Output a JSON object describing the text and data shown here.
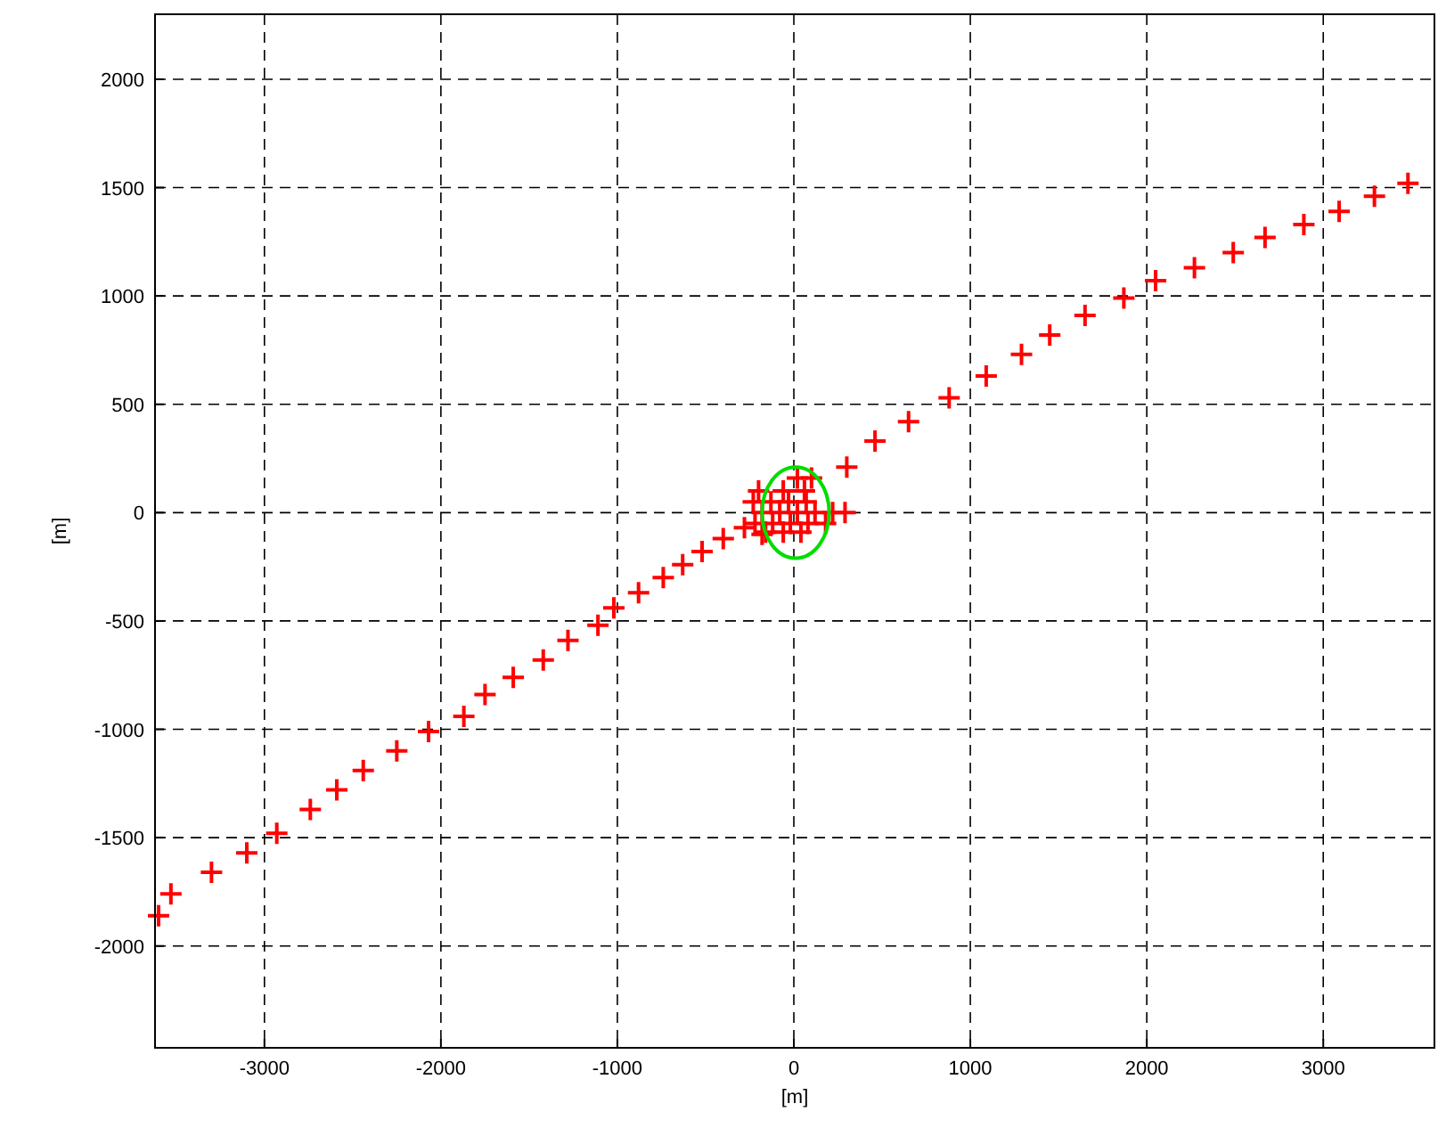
{
  "chart_data": {
    "type": "scatter",
    "xlabel": "[m]",
    "ylabel": "[m]",
    "xlim": [
      -3620,
      3630
    ],
    "ylim": [
      -2470,
      2300
    ],
    "xticks": [
      -3000,
      -2000,
      -1000,
      0,
      1000,
      2000,
      3000
    ],
    "yticks": [
      -2000,
      -1500,
      -1000,
      -500,
      0,
      500,
      1000,
      1500,
      2000
    ],
    "grid": true,
    "series": [
      {
        "color": "#ff0000",
        "marker": "cross",
        "x": [
          -3600,
          -3530,
          -3300,
          -3100,
          -2930,
          -2740,
          -2590,
          -2440,
          -2250,
          -2070,
          -1870,
          -1750,
          -1590,
          -1420,
          -1280,
          -1110,
          -1020,
          -880,
          -740,
          -630,
          -520,
          -400,
          -280,
          -180,
          300,
          460,
          650,
          880,
          1090,
          1290,
          1450,
          1650,
          1870,
          2050,
          2270,
          2490,
          2670,
          2890,
          3090,
          3290,
          3480,
          -200,
          -60,
          60,
          20,
          100,
          -230,
          -130,
          -30,
          70,
          -180,
          -80,
          20,
          120,
          220,
          290,
          -220,
          -120,
          -20,
          80,
          180,
          -160,
          -60,
          40
        ],
        "values": [
          -1860,
          -1760,
          -1660,
          -1570,
          -1480,
          -1370,
          -1280,
          -1190,
          -1100,
          -1010,
          -940,
          -840,
          -760,
          -680,
          -590,
          -520,
          -440,
          -370,
          -300,
          -240,
          -180,
          -120,
          -70,
          -100,
          210,
          330,
          420,
          530,
          630,
          730,
          820,
          910,
          990,
          1070,
          1130,
          1200,
          1270,
          1330,
          1390,
          1460,
          1520,
          100,
          100,
          100,
          160,
          160,
          50,
          50,
          50,
          50,
          0,
          0,
          0,
          0,
          0,
          0,
          -50,
          -50,
          -50,
          -50,
          -50,
          -90,
          -90,
          -90
        ]
      }
    ]
  }
}
